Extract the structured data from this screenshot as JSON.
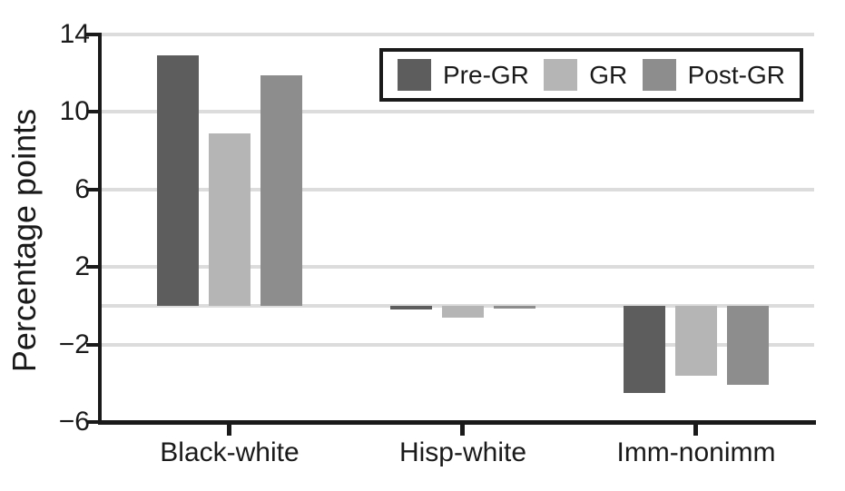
{
  "colors": {
    "pre_gr": "#5d5d5d",
    "gr": "#b5b5b5",
    "post_gr": "#8d8d8d",
    "gridline": "#dcdcdc",
    "axis": "#1a1a1a",
    "background": "#ffffff"
  },
  "chart_data": {
    "type": "bar",
    "title": "",
    "xlabel": "",
    "ylabel": "Percentage points",
    "categories": [
      "Black-white",
      "Hisp-white",
      "Imm-nonimm"
    ],
    "series": [
      {
        "name": "Pre-GR",
        "color": "#5d5d5d",
        "values": [
          12.9,
          -0.2,
          -4.5
        ]
      },
      {
        "name": "GR",
        "color": "#b5b5b5",
        "values": [
          8.9,
          -0.6,
          -3.6
        ]
      },
      {
        "name": "Post-GR",
        "color": "#8d8d8d",
        "values": [
          11.9,
          -0.15,
          -4.1
        ]
      }
    ],
    "ylim": [
      -6,
      14
    ],
    "yticks": [
      {
        "value": 14,
        "label": "14"
      },
      {
        "value": 10,
        "label": "10"
      },
      {
        "value": 6,
        "label": "6"
      },
      {
        "value": 2,
        "label": "2"
      },
      {
        "value": -2,
        "label": "−2"
      },
      {
        "value": -6,
        "label": "−6"
      }
    ],
    "grid_values": [
      14,
      10,
      6,
      2,
      0,
      -2
    ],
    "grid": true,
    "legend_position": "top-right",
    "legend_entries": [
      "Pre-GR",
      "GR",
      "Post-GR"
    ]
  }
}
